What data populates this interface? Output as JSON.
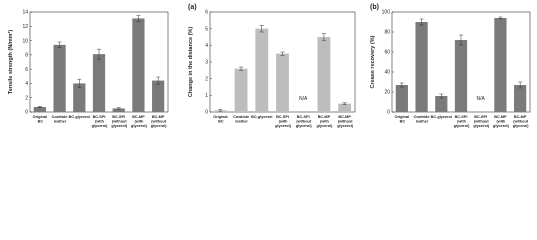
{
  "chart_data": [
    {
      "type": "bar",
      "y_label": "Tensile strength (N/mm²)",
      "categories": [
        "Original BC",
        "Cowhide leather",
        "BC-glycerol",
        "BC-SPI (with glycerol)",
        "BC-SPI (without glycerol)",
        "BC-MP (with glycerol)",
        "BC-MP (without glycerol)"
      ],
      "values": [
        0.7,
        9.4,
        4.0,
        8.1,
        0.5,
        13.1,
        4.4
      ],
      "errors": [
        0.1,
        0.4,
        0.6,
        0.7,
        0.1,
        0.4,
        0.5
      ],
      "color": "#7a7a7a",
      "ylim": [
        0,
        14
      ],
      "yticks": [
        0,
        2,
        4,
        6,
        8,
        10,
        12,
        14
      ]
    },
    {
      "type": "bar",
      "title": "(a)",
      "y_label": "Change in the distance (%)",
      "categories": [
        "Original BC",
        "Cowhide leather",
        "BC-glycerol",
        "BC-SPI (with glycerol)",
        "BC-SPI (without glycerol)",
        "BC-MP (with glycerol)",
        "BC-MP (without glycerol)"
      ],
      "values": [
        0.1,
        2.6,
        5.0,
        3.5,
        null,
        4.5,
        0.5
      ],
      "errors": [
        0.05,
        0.1,
        0.2,
        0.1,
        null,
        0.2,
        0.05
      ],
      "na_label": "N/A",
      "color": "#bdbdbd",
      "ylim": [
        0,
        6
      ],
      "yticks": [
        0,
        1,
        2,
        3,
        4,
        5,
        6
      ]
    },
    {
      "type": "bar",
      "title": "(b)",
      "y_label": "Crease recovery (%)",
      "categories": [
        "Original BC",
        "Cowhide leather",
        "BC-glycerol",
        "BC-SPI (with glycerol)",
        "BC-SPI (without glycerol)",
        "BC-MP (with glycerol)",
        "BC-MP (without glycerol)"
      ],
      "values": [
        27,
        90,
        16,
        72,
        null,
        94,
        27
      ],
      "errors": [
        2,
        3,
        2,
        5,
        null,
        1,
        3
      ],
      "na_label": "N/A",
      "color": "#7a7a7a",
      "ylim": [
        0,
        100
      ],
      "yticks": [
        0,
        20,
        40,
        60,
        80,
        100
      ]
    }
  ]
}
